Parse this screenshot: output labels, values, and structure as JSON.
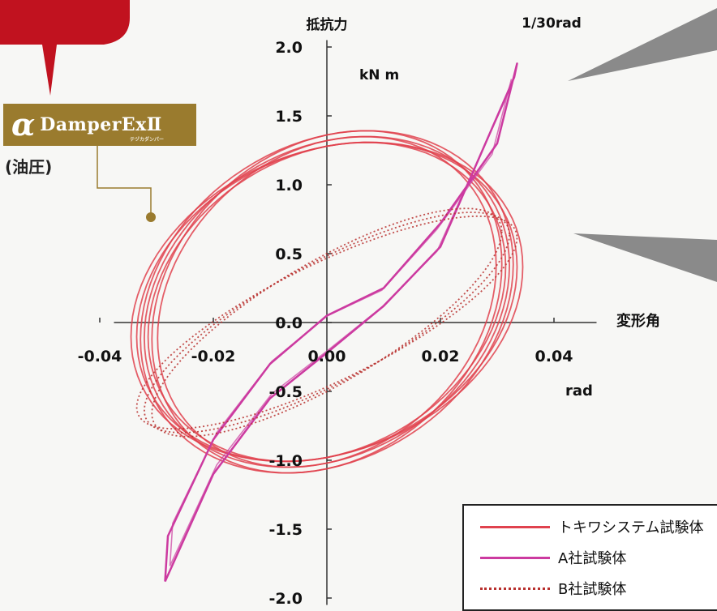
{
  "badge": {
    "symbol": "α",
    "name": "DamperExⅡ",
    "tag": "テヅカダンパー",
    "subtitle": "(油圧)"
  },
  "colors": {
    "tokiwa": "#e0424e",
    "a_sha": "#cc3aa0",
    "b_sha": "#b8302e",
    "badge": "#9a7b2e",
    "callout": "#8a8a8a"
  },
  "chart_data": {
    "type": "line",
    "ylabel": "抵抗力",
    "yunit": "kN m",
    "xlabel": "変形角",
    "xunit": "rad",
    "annotation": "1/30rad",
    "xlim": [
      -0.04,
      0.04
    ],
    "ylim": [
      -2.0,
      2.0
    ],
    "xticks": [
      -0.04,
      -0.02,
      0.0,
      0.02,
      0.04
    ],
    "yticks": [
      -2.0,
      -1.5,
      -1.0,
      -0.5,
      0.0,
      0.5,
      1.0,
      1.5,
      2.0
    ],
    "xtick_labels": [
      "-0.04",
      "-0.02",
      "0.00",
      "0.02",
      "0.04"
    ],
    "ytick_labels": [
      "-2.0",
      "-1.5",
      "-1.0",
      "-0.5",
      "0.0",
      "0.5",
      "1.0",
      "1.5",
      "2.0"
    ],
    "grid": false,
    "legend_position": "bottom-right",
    "series": [
      {
        "name": "トキワシステム試験体",
        "style": "solid",
        "loop": {
          "center_x": 0.0,
          "center_y": 0.15,
          "x_amplitude": 0.0335,
          "y_amplitude": 1.2,
          "phase_lag_rad": 1.35,
          "cycles": 7
        },
        "x": [
          -0.0335,
          -0.03,
          -0.02,
          -0.01,
          0.0,
          0.01,
          0.02,
          0.03,
          0.0335,
          0.03,
          0.02,
          0.01,
          0.0,
          -0.01,
          -0.02,
          -0.03,
          -0.0335
        ],
        "y": [
          0.05,
          0.62,
          1.0,
          1.18,
          1.27,
          1.25,
          1.12,
          0.82,
          0.2,
          -0.48,
          -0.88,
          -1.05,
          -1.1,
          -1.06,
          -0.92,
          -0.65,
          0.05
        ]
      },
      {
        "name": "A社試験体",
        "style": "solid",
        "x": [
          -0.0285,
          -0.02,
          -0.01,
          0.0,
          0.01,
          0.02,
          0.033,
          0.0335,
          0.03,
          0.02,
          0.01,
          0.0,
          -0.01,
          -0.02,
          -0.028,
          -0.0285
        ],
        "y": [
          -1.88,
          -1.1,
          -0.55,
          -0.22,
          0.12,
          0.55,
          1.78,
          1.88,
          1.3,
          0.72,
          0.25,
          0.05,
          -0.3,
          -0.85,
          -1.55,
          -1.88
        ]
      },
      {
        "name": "B社試験体",
        "style": "dotted",
        "loop": {
          "center_x": 0.0,
          "center_y": 0.0,
          "x_amplitude": 0.0335,
          "y_amplitude": 0.8,
          "phase_lag_rad": 0.65,
          "cycles": 3
        },
        "x": [
          -0.0335,
          -0.03,
          -0.02,
          -0.01,
          0.0,
          0.01,
          0.02,
          0.03,
          0.0335,
          0.03,
          0.02,
          0.01,
          0.0,
          -0.01,
          -0.02,
          -0.03,
          -0.0335
        ],
        "y": [
          -0.72,
          -0.28,
          0.2,
          0.45,
          0.58,
          0.68,
          0.76,
          0.8,
          0.72,
          0.28,
          -0.2,
          -0.45,
          -0.58,
          -0.68,
          -0.76,
          -0.8,
          -0.72
        ]
      }
    ]
  }
}
